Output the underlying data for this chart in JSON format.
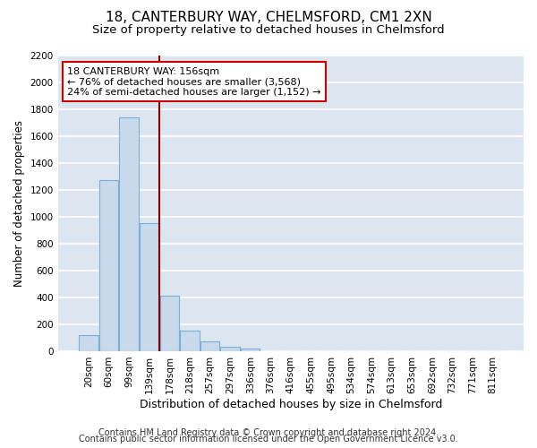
{
  "title": "18, CANTERBURY WAY, CHELMSFORD, CM1 2XN",
  "subtitle": "Size of property relative to detached houses in Chelmsford",
  "bar_labels": [
    "20sqm",
    "60sqm",
    "99sqm",
    "139sqm",
    "178sqm",
    "218sqm",
    "257sqm",
    "297sqm",
    "336sqm",
    "376sqm",
    "416sqm",
    "455sqm",
    "495sqm",
    "534sqm",
    "574sqm",
    "613sqm",
    "653sqm",
    "692sqm",
    "732sqm",
    "771sqm",
    "811sqm"
  ],
  "bar_values": [
    120,
    1270,
    1735,
    950,
    415,
    150,
    75,
    35,
    20,
    0,
    0,
    0,
    0,
    0,
    0,
    0,
    0,
    0,
    0,
    0,
    0
  ],
  "bar_color": "#c8d9ec",
  "bar_edge_color": "#7bafd4",
  "vline_color": "#8b0000",
  "vline_x_index": 3.5,
  "ylim": [
    0,
    2200
  ],
  "yticks": [
    0,
    200,
    400,
    600,
    800,
    1000,
    1200,
    1400,
    1600,
    1800,
    2000,
    2200
  ],
  "xlabel": "Distribution of detached houses by size in Chelmsford",
  "ylabel": "Number of detached properties",
  "annotation_title": "18 CANTERBURY WAY: 156sqm",
  "annotation_line1": "← 76% of detached houses are smaller (3,568)",
  "annotation_line2": "24% of semi-detached houses are larger (1,152) →",
  "annotation_box_color": "#ffffff",
  "annotation_box_edge": "#cc0000",
  "footer_line1": "Contains HM Land Registry data © Crown copyright and database right 2024.",
  "footer_line2": "Contains public sector information licensed under the Open Government Licence v3.0.",
  "fig_bg_color": "#ffffff",
  "plot_bg_color": "#dce6f0",
  "grid_color": "#ffffff",
  "title_fontsize": 11,
  "subtitle_fontsize": 9.5,
  "xlabel_fontsize": 9,
  "ylabel_fontsize": 8.5,
  "tick_fontsize": 7.5,
  "annotation_fontsize": 8,
  "footer_fontsize": 7
}
